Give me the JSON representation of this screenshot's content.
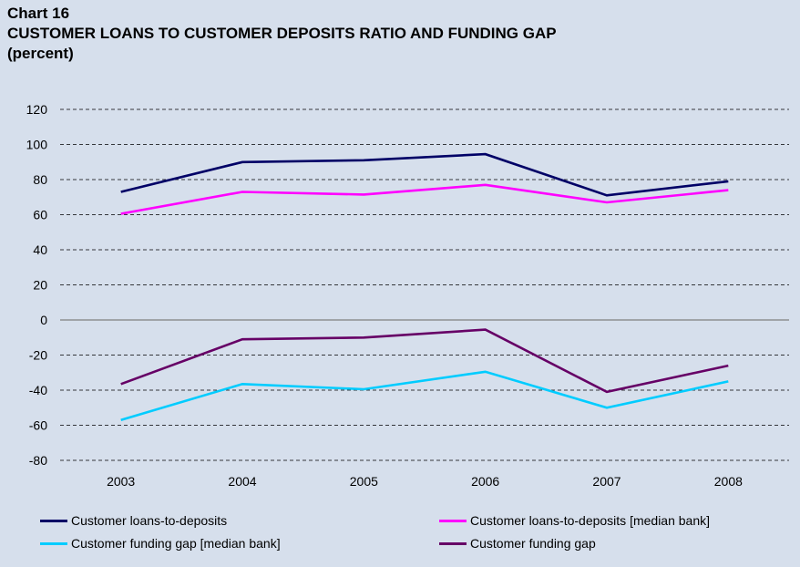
{
  "header": {
    "label": "Chart 16",
    "title": "CUSTOMER LOANS TO CUSTOMER DEPOSITS RATIO AND FUNDING GAP",
    "subtitle": "(percent)"
  },
  "chart_data": {
    "type": "line",
    "x": [
      "2003",
      "2004",
      "2005",
      "2006",
      "2007",
      "2008"
    ],
    "ylim": [
      -80,
      120
    ],
    "yticks": [
      120,
      100,
      80,
      60,
      40,
      20,
      0,
      -20,
      -40,
      -60,
      -80
    ],
    "grid": true,
    "legend_position": "bottom",
    "series": [
      {
        "name": "Customer loans-to-deposits",
        "color": "#000066",
        "values": [
          73,
          90,
          91,
          94.5,
          71,
          79
        ]
      },
      {
        "name": "Customer loans-to-deposits [median bank]",
        "color": "#ff00ff",
        "values": [
          60.5,
          73,
          71.5,
          77,
          67,
          74
        ]
      },
      {
        "name": "Customer funding gap [median bank]",
        "color": "#00ccff",
        "values": [
          -57,
          -36.5,
          -39.5,
          -29.5,
          -50,
          -35
        ]
      },
      {
        "name": "Customer funding gap",
        "color": "#660066",
        "values": [
          -36.5,
          -11,
          -10,
          -5.5,
          -41,
          -26
        ]
      }
    ]
  }
}
